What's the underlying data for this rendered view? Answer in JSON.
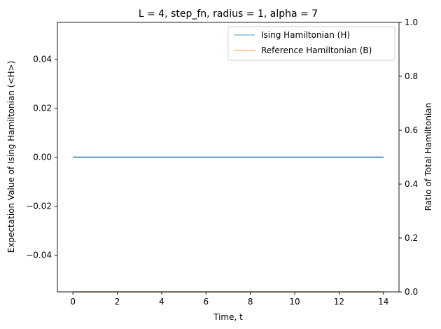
{
  "chart_data": {
    "type": "line",
    "title": "L = 4, step_fn, radius = 1, alpha = 7",
    "xlabel": "Time, t",
    "ylabel": "Expectation Value of Ising Hamiltonian (<H>)",
    "y2label": "Ratio of Total Hamiltonian",
    "xlim": [
      -0.7,
      14.7
    ],
    "ylim": [
      -0.055,
      0.055
    ],
    "y2lim": [
      0,
      1
    ],
    "xticks": [
      0,
      2,
      4,
      6,
      8,
      10,
      12,
      14
    ],
    "xtick_labels": [
      "0",
      "2",
      "4",
      "6",
      "8",
      "10",
      "12",
      "14"
    ],
    "yticks": [
      -0.04,
      -0.02,
      0.0,
      0.02,
      0.04
    ],
    "ytick_labels": [
      "−0.04",
      "−0.02",
      "0.00",
      "0.02",
      "0.04"
    ],
    "y2ticks": [
      0.0,
      0.2,
      0.4,
      0.6,
      0.8,
      1.0
    ],
    "y2tick_labels": [
      "0.0",
      "0.2",
      "0.4",
      "0.6",
      "0.8",
      "1.0"
    ],
    "grid": false,
    "legend_position": "top-right",
    "x": [
      0,
      1,
      2,
      3,
      4,
      5,
      6,
      7,
      8,
      9,
      10,
      11,
      12,
      13,
      14
    ],
    "main_series": {
      "axis": "left",
      "color": "#1f77b4",
      "values": [
        0,
        0,
        0,
        0,
        0,
        0,
        0,
        0,
        0,
        0,
        0,
        0,
        0,
        0,
        0
      ]
    },
    "series": [
      {
        "name": "Ising Hamiltonian (H)",
        "axis": "right",
        "color": "#1f77b4",
        "alpha": 0.5,
        "values": [
          0,
          0,
          0,
          0,
          0,
          0,
          0,
          0,
          0,
          0,
          0,
          0,
          0,
          0,
          0
        ]
      },
      {
        "name": "Reference Hamiltonian (B)",
        "axis": "right",
        "color": "#ff7f0e",
        "alpha": 0.5,
        "values": [
          0,
          0,
          0,
          0,
          0,
          0,
          0,
          0,
          0,
          0,
          0,
          0,
          0,
          0,
          0
        ]
      }
    ]
  }
}
